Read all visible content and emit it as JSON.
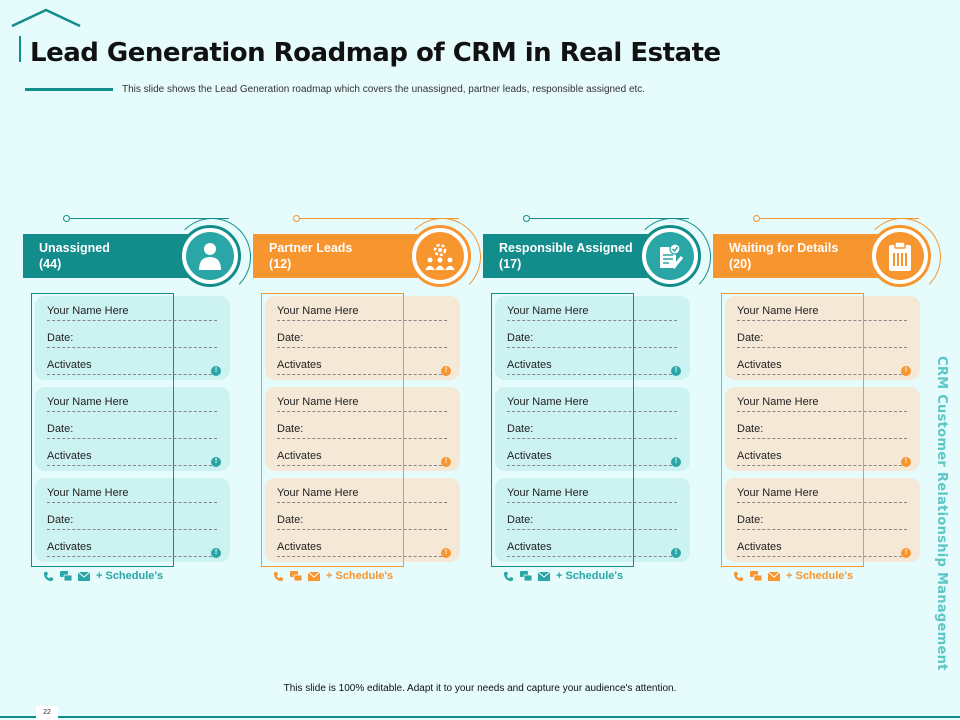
{
  "title": "Lead Generation Roadmap of CRM in Real Estate",
  "subtitle": "This slide shows the Lead Generation roadmap which covers the unassigned, partner leads, responsible assigned etc.",
  "side_text": "CRM Customer Relationship Management",
  "footer": "This slide is 100% editable. Adapt it to your needs and capture your audience's attention.",
  "page_number": "22",
  "colors": {
    "teal": "#138c8c",
    "orange": "#f7952f",
    "teal_card": "#cdf2f2",
    "orange_card": "#f6e8d6"
  },
  "columns": [
    {
      "name": "Unassigned",
      "count": "(44)",
      "theme": "teal",
      "icon": "user-icon",
      "cards": [
        {
          "name": "Your Name Here",
          "date": "Date:",
          "activates": "Activates"
        },
        {
          "name": "Your Name Here",
          "date": "Date:",
          "activates": "Activates"
        },
        {
          "name": "Your Name Here",
          "date": "Date:",
          "activates": "Activates"
        }
      ],
      "schedule": "+ Schedule's"
    },
    {
      "name": "Partner Leads",
      "count": "(12)",
      "theme": "orange",
      "icon": "team-gear-icon",
      "cards": [
        {
          "name": "Your Name Here",
          "date": "Date:",
          "activates": "Activates"
        },
        {
          "name": "Your Name Here",
          "date": "Date:",
          "activates": "Activates"
        },
        {
          "name": "Your Name Here",
          "date": "Date:",
          "activates": "Activates"
        }
      ],
      "schedule": "+ Schedule's"
    },
    {
      "name": "Responsible Assigned",
      "count": "(17)",
      "theme": "teal",
      "icon": "document-check-icon",
      "cards": [
        {
          "name": "Your Name Here",
          "date": "Date:",
          "activates": "Activates"
        },
        {
          "name": "Your Name Here",
          "date": "Date:",
          "activates": "Activates"
        },
        {
          "name": "Your Name Here",
          "date": "Date:",
          "activates": "Activates"
        }
      ],
      "schedule": "+ Schedule's"
    },
    {
      "name": "Waiting for Details",
      "count": "(20)",
      "theme": "orange",
      "icon": "clipboard-icon",
      "cards": [
        {
          "name": "Your Name Here",
          "date": "Date:",
          "activates": "Activates"
        },
        {
          "name": "Your Name Here",
          "date": "Date:",
          "activates": "Activates"
        },
        {
          "name": "Your Name Here",
          "date": "Date:",
          "activates": "Activates"
        }
      ],
      "schedule": "+ Schedule's"
    }
  ]
}
